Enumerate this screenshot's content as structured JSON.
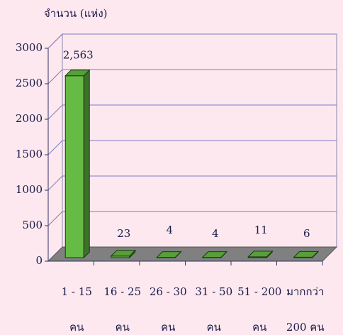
{
  "chart_data": {
    "type": "bar3d",
    "y_label": "จำนวน (แห่ง)",
    "categories": [
      [
        "1 - 15",
        "คน"
      ],
      [
        "16 - 25",
        "คน"
      ],
      [
        "26 - 30",
        "คน"
      ],
      [
        "31 - 50",
        "คน"
      ],
      [
        "51 - 200",
        "คน"
      ],
      [
        "มากกว่า",
        "200 คน"
      ]
    ],
    "values": [
      2563,
      23,
      4,
      4,
      11,
      6
    ],
    "value_labels": [
      "2,563",
      "23",
      "4",
      "4",
      "11",
      "6"
    ],
    "color": "#66bb44",
    "ylim": [
      0,
      3000
    ],
    "yticks": [
      0,
      500,
      1000,
      1500,
      2000,
      2500,
      3000
    ],
    "grid": true
  }
}
